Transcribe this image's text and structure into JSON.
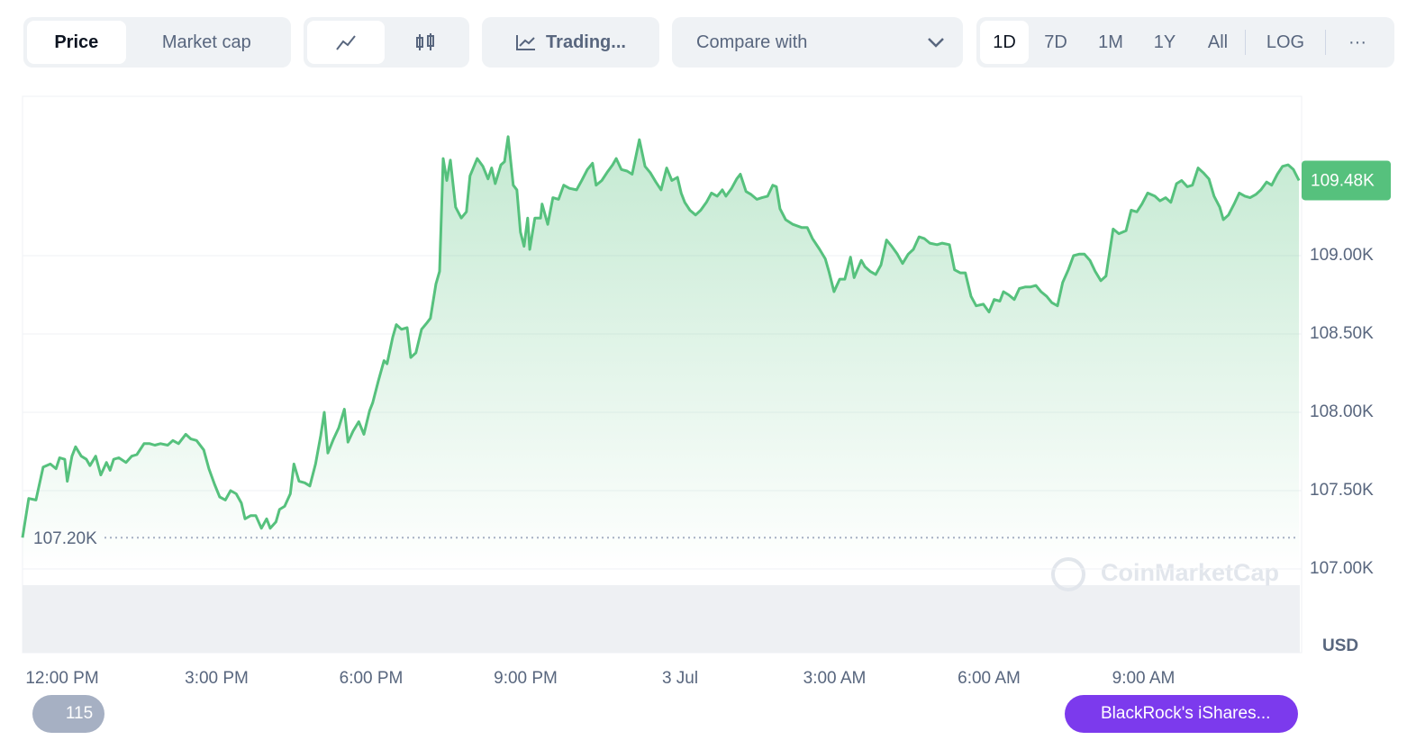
{
  "ui": {
    "tabs": [
      "Price",
      "Market cap"
    ],
    "trading": "Trading...",
    "compare": "Compare with",
    "ranges": [
      "1D",
      "7D",
      "1M",
      "1Y",
      "All"
    ],
    "log": "LOG",
    "more": "···",
    "currency": "USD",
    "watermark": "CoinMarketCap",
    "count": "115",
    "news": "BlackRock's iShares..."
  },
  "chart_data": {
    "type": "line",
    "color": "#56c17d",
    "x": [
      -0.77,
      -0.65,
      -0.51,
      -0.37,
      -0.23,
      -0.12,
      -0.05,
      0.05,
      0.1,
      0.19,
      0.26,
      0.37,
      0.47,
      0.54,
      0.65,
      0.75,
      0.86,
      0.93,
      1.0,
      1.1,
      1.24,
      1.35,
      1.45,
      1.59,
      1.7,
      1.8,
      1.91,
      2.05,
      2.15,
      2.26,
      2.4,
      2.5,
      2.61,
      2.75,
      2.85,
      2.96,
      3.06,
      3.17,
      3.27,
      3.38,
      3.48,
      3.55,
      3.66,
      3.76,
      3.87,
      3.97,
      4.04,
      4.15,
      4.22,
      4.32,
      4.43,
      4.5,
      4.6,
      4.71,
      4.81,
      4.92,
      5.02,
      5.09,
      5.16,
      5.27,
      5.37,
      5.48,
      5.55,
      5.65,
      5.76,
      5.86,
      5.97,
      6.03,
      6.14,
      6.25,
      6.31,
      6.42,
      6.49,
      6.59,
      6.7,
      6.77,
      6.87,
      6.98,
      7.08,
      7.15,
      7.26,
      7.33,
      7.4,
      7.47,
      7.54,
      7.64,
      7.75,
      7.85,
      7.92,
      8.06,
      8.17,
      8.27,
      8.34,
      8.41,
      8.52,
      8.59,
      8.66,
      8.76,
      8.83,
      8.9,
      8.97,
      9.04,
      9.08,
      9.18,
      9.29,
      9.32,
      9.43,
      9.53,
      9.64,
      9.74,
      9.85,
      9.99,
      10.09,
      10.2,
      10.3,
      10.37,
      10.48,
      10.58,
      10.69,
      10.76,
      10.86,
      10.97,
      11.07,
      11.21,
      11.32,
      11.42,
      11.53,
      11.63,
      11.74,
      11.84,
      11.95,
      12.02,
      12.09,
      12.19,
      12.3,
      12.4,
      12.51,
      12.61,
      12.72,
      12.82,
      12.89,
      13.0,
      13.1,
      13.17,
      13.28,
      13.38,
      13.49,
      13.59,
      13.7,
      13.8,
      13.87,
      13.94,
      14.05,
      14.19,
      14.36,
      14.47,
      14.57,
      14.71,
      14.82,
      14.89,
      14.99,
      15.1,
      15.2,
      15.31,
      15.38,
      15.52,
      15.59,
      15.69,
      15.8,
      15.9,
      16.01,
      16.11,
      16.22,
      16.32,
      16.43,
      16.53,
      16.64,
      16.74,
      16.85,
      16.99,
      17.09,
      17.23,
      17.33,
      17.44,
      17.54,
      17.65,
      17.75,
      17.89,
      18.0,
      18.1,
      18.21,
      18.28,
      18.38,
      18.49,
      18.59,
      18.7,
      18.8,
      18.91,
      19.01,
      19.12,
      19.22,
      19.33,
      19.43,
      19.54,
      19.64,
      19.75,
      19.85,
      19.96,
      20.06,
      20.17,
      20.27,
      20.41,
      20.52,
      20.66,
      20.76,
      20.87,
      20.97,
      21.08,
      21.22,
      21.32,
      21.43,
      21.53,
      21.64,
      21.74,
      21.85,
      21.95,
      22.06,
      22.16,
      22.27,
      22.37,
      22.48,
      22.55,
      22.65,
      22.76,
      22.86,
      22.97,
      23.07,
      23.18,
      23.28,
      23.39,
      23.49,
      23.6,
      23.7,
      23.81,
      23.91,
      24.02
    ],
    "values": [
      107200,
      107450,
      107440,
      107650,
      107670,
      107640,
      107710,
      107700,
      107560,
      107720,
      107780,
      107720,
      107700,
      107660,
      107720,
      107600,
      107680,
      107630,
      107700,
      107710,
      107680,
      107720,
      107730,
      107800,
      107800,
      107790,
      107800,
      107790,
      107820,
      107800,
      107860,
      107830,
      107820,
      107760,
      107640,
      107540,
      107460,
      107440,
      107500,
      107480,
      107420,
      107320,
      107340,
      107340,
      107260,
      107320,
      107260,
      107300,
      107380,
      107400,
      107480,
      107670,
      107560,
      107550,
      107530,
      107670,
      107850,
      108000,
      107740,
      107830,
      107900,
      108020,
      107810,
      107880,
      107940,
      107860,
      108010,
      108060,
      108200,
      108330,
      108310,
      108480,
      108560,
      108530,
      108540,
      108350,
      108380,
      108530,
      108570,
      108600,
      108820,
      108900,
      109620,
      109480,
      109610,
      109310,
      109240,
      109280,
      109510,
      109620,
      109570,
      109490,
      109560,
      109460,
      109580,
      109600,
      109760,
      109450,
      109420,
      109150,
      109060,
      109240,
      109040,
      109240,
      109240,
      109330,
      109200,
      109370,
      109360,
      109450,
      109430,
      109420,
      109480,
      109550,
      109590,
      109450,
      109480,
      109530,
      109580,
      109620,
      109550,
      109540,
      109520,
      109740,
      109570,
      109530,
      109470,
      109420,
      109560,
      109480,
      109500,
      109400,
      109340,
      109290,
      109260,
      109290,
      109340,
      109400,
      109380,
      109420,
      109380,
      109430,
      109490,
      109520,
      109410,
      109390,
      109360,
      109370,
      109380,
      109450,
      109440,
      109300,
      109230,
      109200,
      109180,
      109180,
      109110,
      109040,
      108980,
      108900,
      108770,
      108850,
      108850,
      108990,
      108860,
      108970,
      108930,
      108900,
      108880,
      108940,
      109100,
      109060,
      109010,
      108950,
      109010,
      109040,
      109120,
      109110,
      109080,
      109070,
      109080,
      109070,
      108910,
      108890,
      108890,
      108740,
      108680,
      108690,
      108640,
      108720,
      108710,
      108770,
      108750,
      108720,
      108790,
      108800,
      108800,
      108810,
      108770,
      108740,
      108700,
      108680,
      108830,
      108910,
      109000,
      109010,
      109010,
      108970,
      108900,
      108840,
      108870,
      109170,
      109140,
      109160,
      109290,
      109280,
      109330,
      109400,
      109380,
      109350,
      109370,
      109340,
      109460,
      109480,
      109440,
      109450,
      109560,
      109530,
      109490,
      109380,
      109310,
      109230,
      109260,
      109330,
      109400,
      109380,
      109370,
      109390,
      109420,
      109470,
      109450,
      109520,
      109570,
      109580,
      109550,
      109480
    ],
    "xlim": [
      -0.77,
      24.07
    ],
    "xticks": [
      {
        "value": 0,
        "label": "12:00 PM"
      },
      {
        "value": 3,
        "label": "3:00 PM"
      },
      {
        "value": 6,
        "label": "6:00 PM"
      },
      {
        "value": 9,
        "label": "9:00 PM"
      },
      {
        "value": 12,
        "label": "3 Jul"
      },
      {
        "value": 15,
        "label": "3:00 AM"
      },
      {
        "value": 18,
        "label": "6:00 AM"
      },
      {
        "value": 21,
        "label": "9:00 AM"
      }
    ],
    "ylim": [
      107000,
      110000
    ],
    "yticks": [
      {
        "value": 107000,
        "label": "107.00K"
      },
      {
        "value": 107500,
        "label": "107.50K"
      },
      {
        "value": 108000,
        "label": "108.00K"
      },
      {
        "value": 108500,
        "label": "108.50K"
      },
      {
        "value": 109000,
        "label": "109.00K"
      }
    ],
    "grid": true,
    "start": {
      "value": 107200,
      "label": "107.20K"
    },
    "current": {
      "value": 109480,
      "label": "109.48K"
    }
  }
}
